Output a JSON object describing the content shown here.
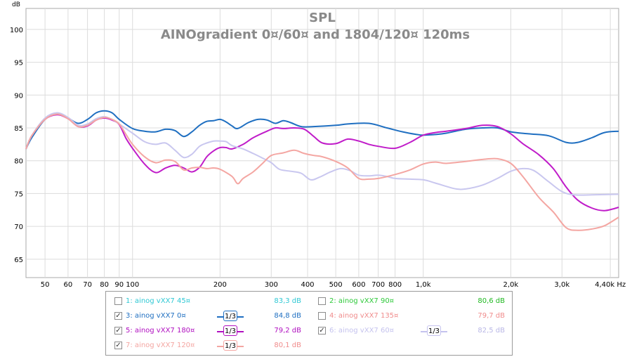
{
  "chart_data": {
    "type": "line",
    "title": "SPL",
    "subtitle": "AINOgradient 0¤/60¤ and 1804/120¤ 120ms",
    "ylabel": "dB",
    "xunit": "Hz",
    "xscale": "log",
    "xlim": [
      43,
      4700
    ],
    "ylim": [
      62.2,
      103.2
    ],
    "grid": true,
    "y_ticks": [
      100,
      95,
      90,
      85,
      80,
      75,
      70,
      65
    ],
    "x_ticks": [
      {
        "v": 50,
        "label": "50"
      },
      {
        "v": 60,
        "label": "60"
      },
      {
        "v": 70,
        "label": "70"
      },
      {
        "v": 80,
        "label": "80"
      },
      {
        "v": 90,
        "label": "90"
      },
      {
        "v": 100,
        "label": "100"
      },
      {
        "v": 200,
        "label": "200"
      },
      {
        "v": 300,
        "label": "300"
      },
      {
        "v": 400,
        "label": "400"
      },
      {
        "v": 500,
        "label": "500"
      },
      {
        "v": 600,
        "label": "600"
      },
      {
        "v": 700,
        "label": "700"
      },
      {
        "v": 800,
        "label": "800"
      },
      {
        "v": 1000,
        "label": "1,0k"
      },
      {
        "v": 2000,
        "label": "2,0k"
      },
      {
        "v": 3000,
        "label": "3,0k"
      },
      {
        "v": 4400,
        "label": "4,40k Hz"
      }
    ],
    "series": [
      {
        "name": "3: ainog vXX7 0¤",
        "color": "#1f6fc1",
        "points": [
          [
            43,
            81.8
          ],
          [
            45,
            83.5
          ],
          [
            50,
            86.3
          ],
          [
            55,
            87.1
          ],
          [
            60,
            86.5
          ],
          [
            65,
            85.7
          ],
          [
            70,
            86.3
          ],
          [
            75,
            87.3
          ],
          [
            80,
            87.6
          ],
          [
            85,
            87.3
          ],
          [
            90,
            86.3
          ],
          [
            100,
            84.9
          ],
          [
            110,
            84.5
          ],
          [
            120,
            84.4
          ],
          [
            130,
            84.8
          ],
          [
            140,
            84.6
          ],
          [
            150,
            83.7
          ],
          [
            160,
            84.4
          ],
          [
            170,
            85.4
          ],
          [
            180,
            86.0
          ],
          [
            190,
            86.1
          ],
          [
            200,
            86.3
          ],
          [
            210,
            85.9
          ],
          [
            220,
            85.3
          ],
          [
            230,
            84.9
          ],
          [
            250,
            85.8
          ],
          [
            270,
            86.3
          ],
          [
            290,
            86.2
          ],
          [
            310,
            85.7
          ],
          [
            330,
            86.1
          ],
          [
            350,
            85.8
          ],
          [
            380,
            85.2
          ],
          [
            420,
            85.2
          ],
          [
            500,
            85.4
          ],
          [
            550,
            85.6
          ],
          [
            650,
            85.7
          ],
          [
            750,
            85.0
          ],
          [
            850,
            84.4
          ],
          [
            950,
            84.0
          ],
          [
            1000,
            83.9
          ],
          [
            1100,
            84.0
          ],
          [
            1200,
            84.2
          ],
          [
            1400,
            84.8
          ],
          [
            1600,
            85.0
          ],
          [
            1800,
            85.0
          ],
          [
            2000,
            84.4
          ],
          [
            2300,
            84.1
          ],
          [
            2700,
            83.8
          ],
          [
            3100,
            82.8
          ],
          [
            3400,
            82.8
          ],
          [
            3800,
            83.5
          ],
          [
            4200,
            84.3
          ],
          [
            4700,
            84.5
          ]
        ]
      },
      {
        "name": "5: ainog vXX7 180¤",
        "color": "#c01cc9",
        "points": [
          [
            43,
            81.8
          ],
          [
            45,
            83.8
          ],
          [
            50,
            86.3
          ],
          [
            55,
            87.0
          ],
          [
            60,
            86.4
          ],
          [
            65,
            85.2
          ],
          [
            70,
            85.3
          ],
          [
            75,
            86.2
          ],
          [
            80,
            86.5
          ],
          [
            85,
            86.2
          ],
          [
            90,
            85.5
          ],
          [
            95,
            83.4
          ],
          [
            100,
            81.9
          ],
          [
            110,
            79.5
          ],
          [
            120,
            78.2
          ],
          [
            130,
            78.9
          ],
          [
            140,
            79.3
          ],
          [
            150,
            78.9
          ],
          [
            160,
            78.3
          ],
          [
            170,
            79.0
          ],
          [
            180,
            80.6
          ],
          [
            190,
            81.5
          ],
          [
            200,
            82.0
          ],
          [
            210,
            82.0
          ],
          [
            220,
            81.8
          ],
          [
            240,
            82.5
          ],
          [
            260,
            83.5
          ],
          [
            290,
            84.5
          ],
          [
            310,
            85.0
          ],
          [
            330,
            84.9
          ],
          [
            360,
            85.0
          ],
          [
            390,
            84.8
          ],
          [
            420,
            83.7
          ],
          [
            450,
            82.7
          ],
          [
            500,
            82.6
          ],
          [
            550,
            83.3
          ],
          [
            600,
            83.0
          ],
          [
            650,
            82.5
          ],
          [
            700,
            82.2
          ],
          [
            800,
            81.9
          ],
          [
            900,
            82.8
          ],
          [
            1000,
            83.9
          ],
          [
            1100,
            84.3
          ],
          [
            1200,
            84.5
          ],
          [
            1400,
            84.9
          ],
          [
            1600,
            85.4
          ],
          [
            1800,
            85.2
          ],
          [
            2000,
            84.1
          ],
          [
            2200,
            82.6
          ],
          [
            2500,
            80.9
          ],
          [
            2800,
            78.8
          ],
          [
            3100,
            76.0
          ],
          [
            3400,
            74.0
          ],
          [
            3800,
            72.8
          ],
          [
            4200,
            72.4
          ],
          [
            4700,
            72.9
          ]
        ]
      },
      {
        "name": "6: ainog vXX7 60¤",
        "color": "#c9c7ef",
        "points": [
          [
            43,
            81.8
          ],
          [
            45,
            83.8
          ],
          [
            50,
            86.5
          ],
          [
            55,
            87.3
          ],
          [
            60,
            86.6
          ],
          [
            65,
            85.4
          ],
          [
            70,
            85.6
          ],
          [
            75,
            86.4
          ],
          [
            80,
            86.7
          ],
          [
            85,
            86.3
          ],
          [
            90,
            85.6
          ],
          [
            100,
            84.2
          ],
          [
            110,
            82.9
          ],
          [
            120,
            82.5
          ],
          [
            130,
            82.7
          ],
          [
            140,
            81.6
          ],
          [
            150,
            80.5
          ],
          [
            160,
            81.0
          ],
          [
            170,
            82.2
          ],
          [
            180,
            82.7
          ],
          [
            190,
            83.0
          ],
          [
            200,
            83.0
          ],
          [
            210,
            82.9
          ],
          [
            220,
            82.3
          ],
          [
            240,
            81.8
          ],
          [
            260,
            81.1
          ],
          [
            280,
            80.4
          ],
          [
            300,
            79.7
          ],
          [
            320,
            78.7
          ],
          [
            350,
            78.4
          ],
          [
            380,
            78.1
          ],
          [
            410,
            77.1
          ],
          [
            440,
            77.5
          ],
          [
            480,
            78.3
          ],
          [
            520,
            78.8
          ],
          [
            560,
            78.5
          ],
          [
            600,
            77.8
          ],
          [
            650,
            77.7
          ],
          [
            700,
            77.8
          ],
          [
            750,
            77.6
          ],
          [
            800,
            77.3
          ],
          [
            900,
            77.2
          ],
          [
            1000,
            77.1
          ],
          [
            1100,
            76.6
          ],
          [
            1200,
            76.1
          ],
          [
            1300,
            75.7
          ],
          [
            1400,
            75.7
          ],
          [
            1600,
            76.3
          ],
          [
            1800,
            77.3
          ],
          [
            2000,
            78.4
          ],
          [
            2200,
            78.8
          ],
          [
            2400,
            78.5
          ],
          [
            2700,
            76.8
          ],
          [
            3000,
            75.3
          ],
          [
            3300,
            74.8
          ],
          [
            3800,
            74.8
          ],
          [
            4700,
            74.9
          ]
        ]
      },
      {
        "name": "7: ainog vXX7 120¤",
        "color": "#f4a6a2",
        "points": [
          [
            43,
            81.8
          ],
          [
            45,
            83.8
          ],
          [
            50,
            86.3
          ],
          [
            55,
            87.1
          ],
          [
            60,
            86.4
          ],
          [
            65,
            85.2
          ],
          [
            70,
            85.4
          ],
          [
            75,
            86.2
          ],
          [
            80,
            86.6
          ],
          [
            85,
            86.3
          ],
          [
            90,
            85.6
          ],
          [
            95,
            84.0
          ],
          [
            100,
            82.5
          ],
          [
            110,
            80.6
          ],
          [
            120,
            79.7
          ],
          [
            130,
            80.1
          ],
          [
            140,
            79.9
          ],
          [
            150,
            78.6
          ],
          [
            160,
            78.9
          ],
          [
            170,
            79.0
          ],
          [
            180,
            78.8
          ],
          [
            190,
            78.9
          ],
          [
            200,
            78.7
          ],
          [
            220,
            77.6
          ],
          [
            230,
            76.5
          ],
          [
            240,
            77.3
          ],
          [
            260,
            78.3
          ],
          [
            280,
            79.6
          ],
          [
            300,
            80.8
          ],
          [
            330,
            81.2
          ],
          [
            360,
            81.6
          ],
          [
            390,
            81.1
          ],
          [
            420,
            80.8
          ],
          [
            450,
            80.6
          ],
          [
            500,
            79.9
          ],
          [
            550,
            78.9
          ],
          [
            600,
            77.3
          ],
          [
            650,
            77.2
          ],
          [
            700,
            77.3
          ],
          [
            800,
            77.9
          ],
          [
            900,
            78.6
          ],
          [
            1000,
            79.5
          ],
          [
            1100,
            79.8
          ],
          [
            1200,
            79.6
          ],
          [
            1400,
            79.9
          ],
          [
            1600,
            80.2
          ],
          [
            1800,
            80.3
          ],
          [
            2000,
            79.6
          ],
          [
            2200,
            77.6
          ],
          [
            2500,
            74.4
          ],
          [
            2800,
            72.2
          ],
          [
            3100,
            69.8
          ],
          [
            3400,
            69.4
          ],
          [
            3800,
            69.6
          ],
          [
            4200,
            70.1
          ],
          [
            4700,
            71.4
          ]
        ]
      }
    ]
  },
  "legend": {
    "items": [
      {
        "label": "1: ainog vXX7 45¤",
        "value": "83,3 dB",
        "checked": false,
        "smoothing": "",
        "color": "#2fc8d4",
        "value_color": "#2fc8d4"
      },
      {
        "label": "2: ainog vXX7 90¤",
        "value": "80,6 dB",
        "checked": false,
        "smoothing": "",
        "color": "#2ec93a",
        "value_color": "#1fb820"
      },
      {
        "label": "3: ainog vXX7 0¤",
        "value": "84,8 dB",
        "checked": true,
        "smoothing": "1/3",
        "color": "#1f6fc1",
        "value_color": "#1f6fc1"
      },
      {
        "label": "4: ainog vXX7 135¤",
        "value": "79,7 dB",
        "checked": false,
        "smoothing": "",
        "color": "#f08c8c",
        "value_color": "#f08c8c"
      },
      {
        "label": "5: ainog vXX7 180¤",
        "value": "79,2 dB",
        "checked": true,
        "smoothing": "1/3",
        "color": "#b010c0",
        "value_color": "#b010c0"
      },
      {
        "label": "6: ainog vXX7 60¤",
        "value": "82,5 dB",
        "checked": true,
        "smoothing": "1/3",
        "color": "#c5c3ee",
        "value_color": "#b9b7e6"
      },
      {
        "label": "7: ainog vXX7 120¤",
        "value": "80,1 dB",
        "checked": true,
        "smoothing": "1/3",
        "color": "#f4a6a2",
        "value_color": "#f08c8c"
      }
    ]
  }
}
